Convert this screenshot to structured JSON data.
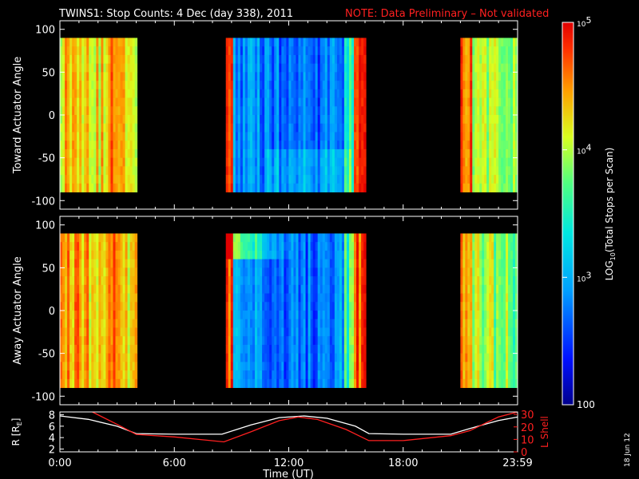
{
  "header": {
    "title": "TWINS1: Stop Counts:  4 Dec (day 338), 2011",
    "note": "NOTE: Data Preliminary – Not validated",
    "note_color": "#ff2020"
  },
  "side_stamp": "18 Jun 12",
  "chart_data": [
    {
      "type": "heatmap",
      "ylabel": "Toward Actuator Angle",
      "ylim": [
        -110,
        110
      ],
      "yticks": [
        100,
        50,
        0,
        -50,
        -100
      ],
      "xlim": [
        0,
        24
      ],
      "angle_range": [
        -90,
        90
      ],
      "data_segments_hours": [
        [
          0,
          4.05
        ],
        [
          8.7,
          16.05
        ],
        [
          21.0,
          24
        ]
      ]
    },
    {
      "type": "heatmap",
      "ylabel": "Away Actuator Angle",
      "ylim": [
        -110,
        110
      ],
      "yticks": [
        100,
        50,
        0,
        -50,
        -100
      ],
      "xlim": [
        0,
        24
      ],
      "angle_range": [
        -90,
        90
      ],
      "data_segments_hours": [
        [
          0,
          4.05
        ],
        [
          8.7,
          16.05
        ],
        [
          21.0,
          24
        ]
      ]
    },
    {
      "type": "line",
      "ylabel": "R [R",
      "ylabel_sub": "E",
      "ylabel_end": "]",
      "ylim": [
        1.5,
        8.5
      ],
      "yticks": [
        "8",
        "6",
        "4",
        "2"
      ],
      "ylabel_right": "L Shell",
      "ylim_right": [
        0,
        32
      ],
      "yticks_right": [
        "30",
        "20",
        "10",
        "0"
      ],
      "xlabel": "Time (UT)",
      "xticks": [
        "0:00",
        "6:00",
        "12:00",
        "18:00",
        "23:59"
      ],
      "series": [
        {
          "color": "#ffffff",
          "x": [
            0,
            1.5,
            3,
            4,
            6,
            8.5,
            10,
            11.5,
            12.8,
            14,
            15.5,
            16.2,
            18,
            20.5,
            21.5,
            23,
            24
          ],
          "values": [
            7.8,
            7.2,
            6.0,
            4.7,
            4.6,
            4.6,
            6.2,
            7.5,
            7.8,
            7.4,
            6.0,
            4.7,
            4.6,
            4.6,
            5.6,
            7.0,
            7.6
          ]
        },
        {
          "color": "#ff2020",
          "axis": "right",
          "x": [
            1.7,
            3,
            4,
            6,
            8.6,
            10,
            11.5,
            12.5,
            13.5,
            15,
            16.2,
            18,
            20.5,
            21.5,
            23,
            24
          ],
          "values": [
            32,
            22,
            14,
            12,
            8,
            16,
            25,
            28,
            26,
            18,
            9,
            9,
            13,
            17,
            28,
            32
          ]
        }
      ]
    }
  ],
  "colorbar": {
    "label": "LOG10(Total Stops per Scan)",
    "label_main": "LOG",
    "label_sub": "10",
    "label_rest": "(Total Stops per Scan)",
    "range": [
      100,
      100000
    ],
    "tick_labels": [
      {
        "base": "10",
        "exp": "5",
        "value": 100000
      },
      {
        "base": "10",
        "exp": "4",
        "value": 10000
      },
      {
        "base": "10",
        "exp": "3",
        "value": 1000
      },
      {
        "base": "100",
        "exp": "",
        "value": 100
      }
    ]
  }
}
